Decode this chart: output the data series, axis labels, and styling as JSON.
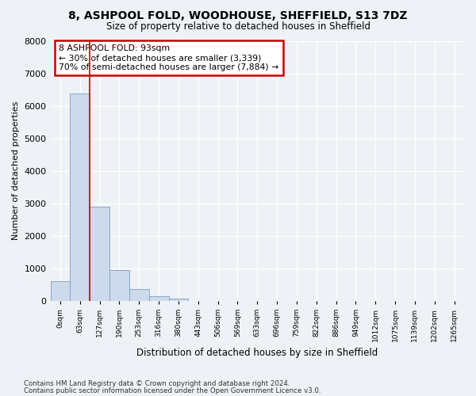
{
  "title_line1": "8, ASHPOOL FOLD, WOODHOUSE, SHEFFIELD, S13 7DZ",
  "title_line2": "Size of property relative to detached houses in Sheffield",
  "xlabel": "Distribution of detached houses by size in Sheffield",
  "ylabel": "Number of detached properties",
  "bar_labels": [
    "0sqm",
    "63sqm",
    "127sqm",
    "190sqm",
    "253sqm",
    "316sqm",
    "380sqm",
    "443sqm",
    "506sqm",
    "569sqm",
    "633sqm",
    "696sqm",
    "759sqm",
    "822sqm",
    "886sqm",
    "949sqm",
    "1012sqm",
    "1075sqm",
    "1139sqm",
    "1202sqm",
    "1265sqm"
  ],
  "bar_heights": [
    620,
    6380,
    2900,
    960,
    360,
    140,
    80,
    0,
    0,
    0,
    0,
    0,
    0,
    0,
    0,
    0,
    0,
    0,
    0,
    0,
    0
  ],
  "bar_color": "#cddaeb",
  "bar_edge_color": "#7a9fc0",
  "annotation_title": "8 ASHPOOL FOLD: 93sqm",
  "annotation_line2": "← 30% of detached houses are smaller (3,339)",
  "annotation_line3": "70% of semi-detached houses are larger (7,884) →",
  "annotation_box_color": "#ffffff",
  "annotation_box_edge": "#cc0000",
  "vline_color": "#cc0000",
  "vline_x": 1.5,
  "ylim": [
    0,
    8000
  ],
  "yticks": [
    0,
    1000,
    2000,
    3000,
    4000,
    5000,
    6000,
    7000,
    8000
  ],
  "footer_line1": "Contains HM Land Registry data © Crown copyright and database right 2024.",
  "footer_line2": "Contains public sector information licensed under the Open Government Licence v3.0.",
  "bg_color": "#eef2f7",
  "plot_bg_color": "#eef2f7",
  "grid_color": "#ffffff"
}
